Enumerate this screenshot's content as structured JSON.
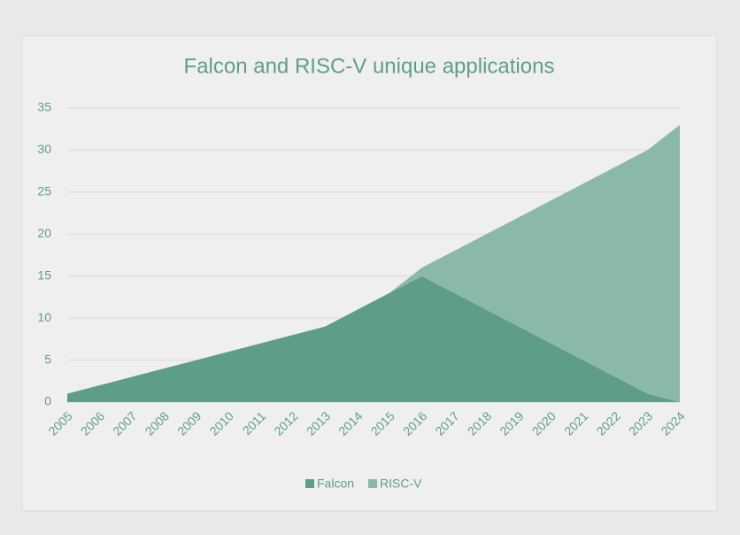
{
  "chart_data": {
    "type": "area",
    "stacked": true,
    "title": "Falcon and RISC-V unique applications",
    "categories": [
      "2005",
      "2006",
      "2007",
      "2008",
      "2009",
      "2010",
      "2011",
      "2012",
      "2013",
      "2014",
      "2015",
      "2016",
      "2017",
      "2018",
      "2019",
      "2020",
      "2021",
      "2022",
      "2023",
      "2024"
    ],
    "series": [
      {
        "name": "Falcon",
        "color": "#5e9e86",
        "values": [
          1,
          2,
          3,
          4,
          5,
          6,
          7,
          8,
          9,
          11,
          13,
          15,
          13,
          11,
          9,
          7,
          5,
          3,
          1,
          0
        ]
      },
      {
        "name": "RISC-V",
        "color": "#8bb9a8",
        "values": [
          0,
          0,
          0,
          0,
          0,
          0,
          0,
          0,
          0,
          0,
          0,
          1,
          5,
          9,
          13,
          17,
          21,
          25,
          29,
          33
        ]
      }
    ],
    "ylim": [
      0,
      35
    ],
    "yticks": [
      0,
      5,
      10,
      15,
      20,
      25,
      30,
      35
    ],
    "grid": true,
    "legend": "bottom"
  }
}
